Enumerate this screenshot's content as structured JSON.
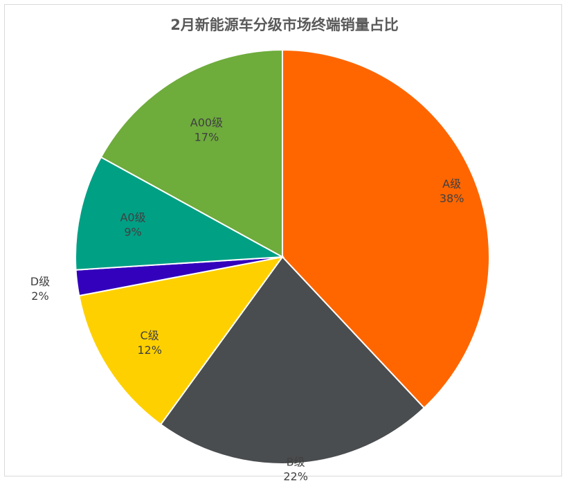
{
  "chart_data": {
    "type": "pie",
    "title": "2月新能源车分级市场终端销量占比",
    "slices": [
      {
        "label": "A级",
        "value": 38,
        "pct_text": "38%",
        "color": "#ff6600"
      },
      {
        "label": "B级",
        "value": 22,
        "pct_text": "22%",
        "color": "#4a4d4f"
      },
      {
        "label": "C级",
        "value": 12,
        "pct_text": "12%",
        "color": "#ffd000"
      },
      {
        "label": "D级",
        "value": 2,
        "pct_text": "2%",
        "color": "#3300bb"
      },
      {
        "label": "A0级",
        "value": 9,
        "pct_text": "9%",
        "color": "#00a085"
      },
      {
        "label": "A00级",
        "value": 17,
        "pct_text": "17%",
        "color": "#6eac3c"
      }
    ],
    "start": "12 o'clock",
    "direction": "clockwise",
    "legend": "none"
  }
}
